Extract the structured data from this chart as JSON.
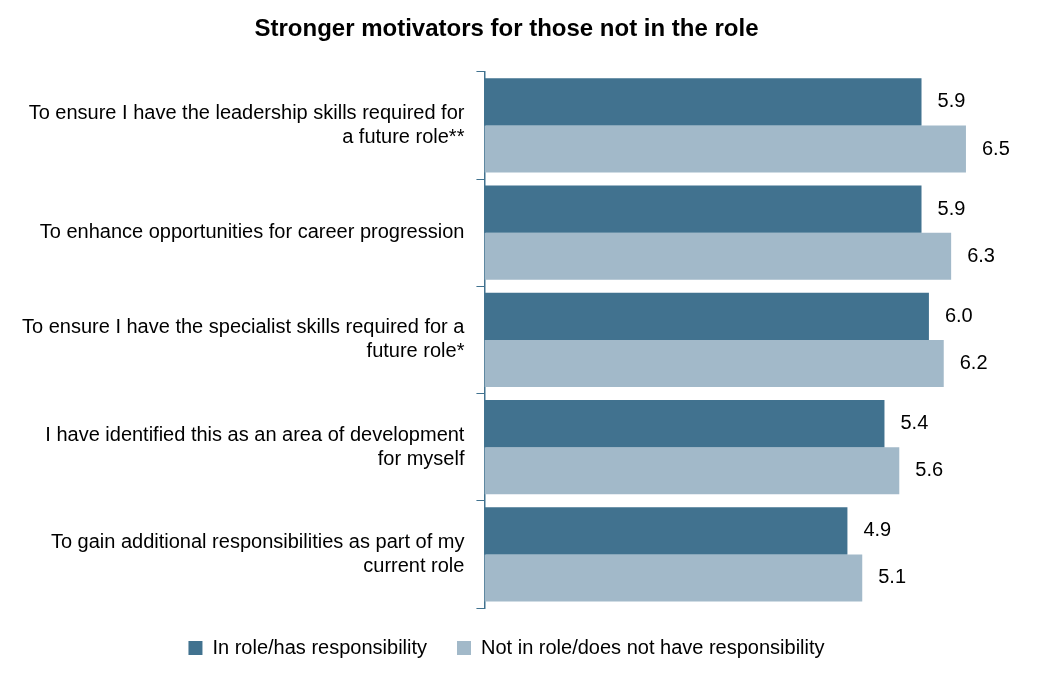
{
  "chart_data": {
    "type": "bar",
    "orientation": "horizontal",
    "title": "Stronger motivators for those not in the role",
    "categories": [
      "To ensure I have the leadership skills required for a future role**",
      "To enhance opportunities for career progression",
      "To ensure I have the specialist skills required for a future role*",
      "I have identified this as an area of development for myself",
      "To gain additional responsibilities as part of my current role"
    ],
    "series": [
      {
        "name": "In role/has responsibility",
        "color": "#41728f",
        "values": [
          5.9,
          5.9,
          6.0,
          5.4,
          4.9
        ],
        "value_labels": [
          "5.9",
          "5.9",
          "6.0",
          "5.4",
          "4.9"
        ]
      },
      {
        "name": "Not in role/does not have responsibility",
        "color": "#a2b9c9",
        "values": [
          6.5,
          6.3,
          6.2,
          5.6,
          5.1
        ],
        "value_labels": [
          "6.5",
          "6.3",
          "6.2",
          "5.6",
          "5.1"
        ]
      }
    ],
    "legend": "bottom"
  }
}
